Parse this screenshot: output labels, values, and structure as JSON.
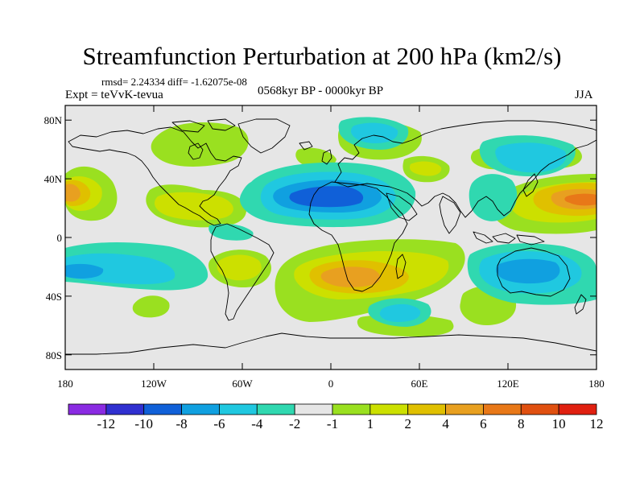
{
  "title": "Streamfunction Perturbation at 200 hPa (km2/s)",
  "stats": "rmsd= 2.24334 diff= -1.62075e-08",
  "experiment": "Expt = teVvK-tevua",
  "period": "0568kyr BP - 0000kyr BP",
  "season": "JJA",
  "map": {
    "projection": "equirectangular",
    "lon_range": [
      -180,
      180
    ],
    "lat_range": [
      -90,
      90
    ],
    "lat_ticks": [
      "80N",
      "40N",
      "0",
      "40S",
      "80S"
    ],
    "lat_tick_values": [
      80,
      40,
      0,
      -40,
      -80
    ],
    "lon_ticks": [
      "180",
      "120W",
      "60W",
      "0",
      "60E",
      "120E",
      "180"
    ],
    "lon_tick_values": [
      -180,
      -120,
      -60,
      0,
      60,
      120,
      180
    ],
    "background_color": "#e6e6e6",
    "coastline_color": "#000000"
  },
  "colorbar": {
    "colors": [
      "#8a2be2",
      "#3030d0",
      "#1060d8",
      "#10a0e0",
      "#20c8e0",
      "#30d8b0",
      "#e6e6e6",
      "#9ae020",
      "#cce000",
      "#e0c000",
      "#e8a020",
      "#e87818",
      "#e05010",
      "#e02010"
    ],
    "labels": [
      "-12",
      "-10",
      "-8",
      "-6",
      "-4",
      "-2",
      "-1",
      "1",
      "2",
      "4",
      "6",
      "8",
      "10",
      "12"
    ]
  }
}
